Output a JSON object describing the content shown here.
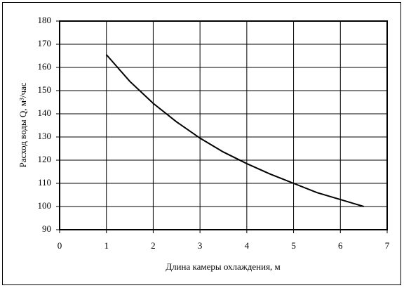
{
  "chart_data": {
    "type": "line",
    "x_label": "Длина камеры охлаждения, м",
    "y_label": "Расход воды Q, м³/час",
    "x": [
      1,
      1.5,
      2,
      2.5,
      3,
      3.5,
      4,
      4.5,
      5,
      5.5,
      6,
      6.5
    ],
    "series": [
      {
        "color": "#000000",
        "values": [
          165.5,
          154,
          144.5,
          136.5,
          129.5,
          123.5,
          118.5,
          114,
          110,
          106,
          103,
          100
        ]
      }
    ],
    "xlim": [
      0,
      7
    ],
    "xticks": [
      0,
      1,
      2,
      3,
      4,
      5,
      6,
      7
    ],
    "ylim": [
      90,
      180
    ],
    "yticks": [
      90,
      100,
      110,
      120,
      130,
      140,
      150,
      160,
      170,
      180
    ],
    "grid": true
  }
}
